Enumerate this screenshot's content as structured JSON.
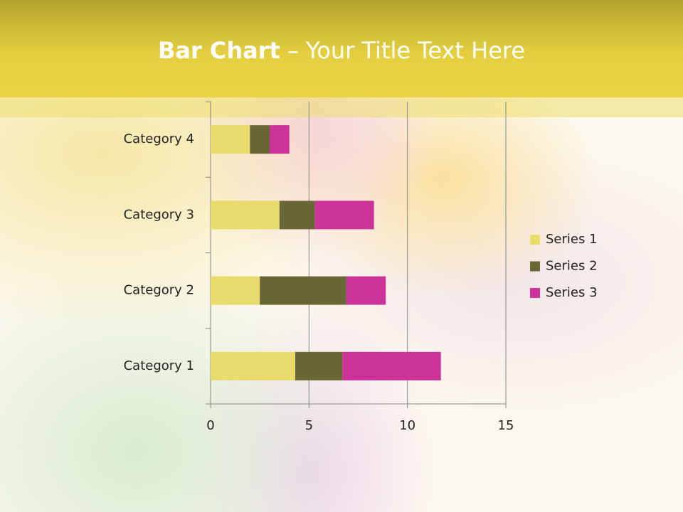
{
  "chart_data": {
    "type": "stacked-bar-horizontal",
    "title_bold": "Bar Chart",
    "title": "– Your Title Text Here",
    "categories": [
      "Category 1",
      "Category 2",
      "Category 3",
      "Category 4"
    ],
    "series": [
      {
        "name": "Series 1",
        "color": "#e9db6c",
        "values": [
          4.3,
          2.5,
          3.5,
          2
        ]
      },
      {
        "name": "Series 2",
        "color": "#686735",
        "values": [
          2.4,
          4.4,
          1.8,
          1
        ]
      },
      {
        "name": "Series 3",
        "color": "#cc3399",
        "values": [
          5,
          2,
          3,
          1
        ]
      }
    ],
    "xlim": [
      0,
      15
    ],
    "xticks": [
      0,
      5,
      10,
      15
    ],
    "grid": true,
    "legend": "right"
  }
}
